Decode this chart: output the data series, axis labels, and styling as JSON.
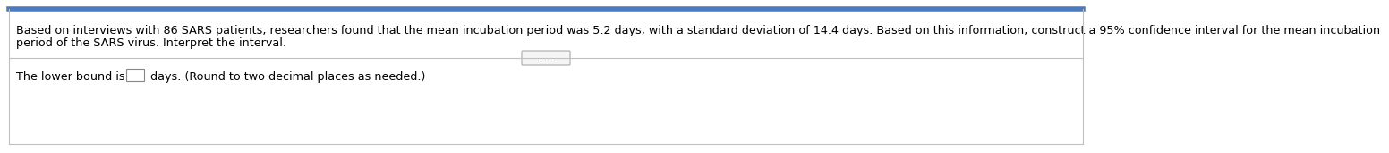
{
  "line1": "Based on interviews with 86 SARS patients, researchers found that the mean incubation period was 5.2 days, with a standard deviation of 14.4 days. Based on this information, construct a 95% confidence interval for the mean incubation",
  "line2": "period of the SARS virus. Interpret the interval.",
  "dots": ".....",
  "lower_bound_text": "The lower bound is",
  "lower_bound_suffix": " days. (Round to two decimal places as needed.)",
  "bg_color": "#ffffff",
  "text_color": "#000000",
  "border_color": "#c0c0c0",
  "top_border_color": "#4a7abf",
  "divider_color": "#c0c0c0",
  "dots_color": "#666666",
  "font_size": 9.2,
  "figure_width": 12.0,
  "figure_height": 1.52
}
